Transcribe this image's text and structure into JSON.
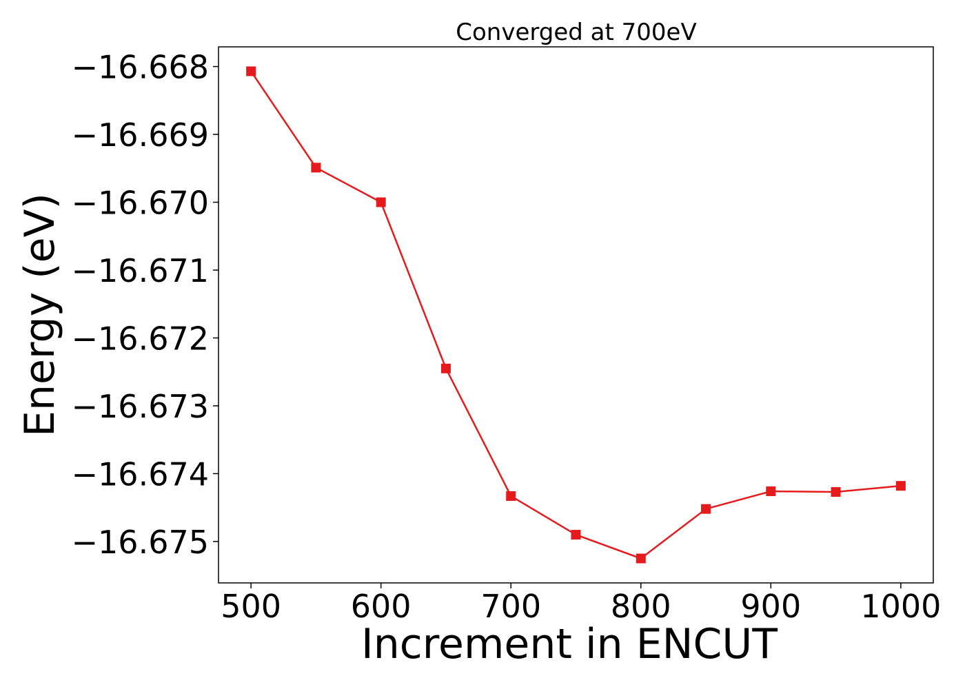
{
  "chart_data": {
    "type": "line",
    "title": "Converged at 700eV",
    "xlabel": "Increment in ENCUT",
    "ylabel": "Energy (eV)",
    "x": [
      500,
      550,
      600,
      650,
      700,
      750,
      800,
      850,
      900,
      950,
      1000
    ],
    "series": [
      {
        "values": [
          -16.66807,
          -16.66949,
          -16.67,
          -16.67245,
          -16.67433,
          -16.6749,
          -16.67525,
          -16.67452,
          -16.67426,
          -16.67427,
          -16.67418
        ],
        "color": "#e41a1c",
        "marker": "square"
      }
    ],
    "xticks": [
      500,
      600,
      700,
      800,
      900,
      1000
    ],
    "xtick_labels": [
      "500",
      "600",
      "700",
      "800",
      "900",
      "1000"
    ],
    "yticks": [
      -16.668,
      -16.669,
      -16.67,
      -16.671,
      -16.672,
      -16.673,
      -16.674,
      -16.675
    ],
    "ytick_labels": [
      "−16.668",
      "−16.669",
      "−16.670",
      "−16.671",
      "−16.672",
      "−16.673",
      "−16.674",
      "−16.675"
    ],
    "xlim": [
      475,
      1025
    ],
    "ylim": [
      -16.67561,
      -16.66771
    ],
    "grid": false,
    "legend": "none"
  }
}
